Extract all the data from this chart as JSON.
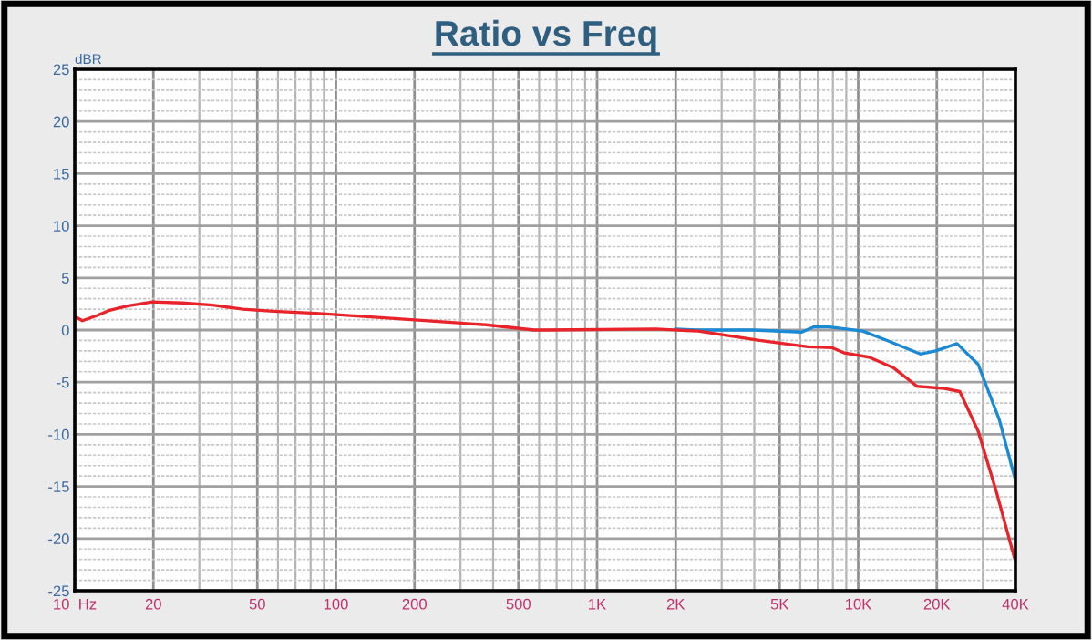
{
  "chart_data": {
    "type": "line",
    "title": "Ratio vs Freq",
    "ylabel": "dBR",
    "log": "x",
    "grid": true,
    "marker": "none",
    "line_style": "solid",
    "xlim": [
      10,
      40000
    ],
    "ylim": [
      -25,
      25
    ],
    "xticks": [
      {
        "value": 10,
        "label": "10  Hz"
      },
      20,
      50,
      100,
      200,
      500,
      {
        "value": 1000,
        "label": "1K"
      },
      {
        "value": 2000,
        "label": "2K"
      },
      {
        "value": 5000,
        "label": "5K"
      },
      {
        "value": 10000,
        "label": "10K"
      },
      {
        "value": 20000,
        "label": "20K"
      },
      {
        "value": 40000,
        "label": "40K"
      }
    ],
    "yticks": [
      -25,
      -20,
      -15,
      -10,
      -5,
      0,
      5,
      10,
      15,
      20,
      25
    ],
    "series": [
      {
        "color": "#1a8ad4",
        "x": [
          2000,
          2440,
          3965,
          6080,
          6770,
          7740,
          10400,
          12900,
          17300,
          19800,
          23900,
          28800,
          34700,
          39700
        ],
        "values": [
          0.1,
          0,
          0,
          -0.2,
          0.3,
          0.3,
          -0.1,
          -1.0,
          -2.3,
          -2.0,
          -1.3,
          -3.3,
          -8.6,
          -14.1
        ]
      },
      {
        "color": "#e8232a",
        "x": [
          10,
          10.7,
          12.2,
          13.6,
          15.9,
          19.8,
          25.8,
          33.7,
          44,
          57.6,
          83.7,
          128,
          219,
          376,
          573,
          640,
          1680,
          2440,
          4190,
          6420,
          7960,
          8860,
          11000,
          13600,
          16800,
          21400,
          24500,
          28800,
          33800,
          39700
        ],
        "values": [
          1.3,
          0.9,
          1.4,
          1.9,
          2.3,
          2.7,
          2.6,
          2.4,
          2.0,
          1.8,
          1.6,
          1.3,
          0.9,
          0.5,
          0,
          0,
          0.1,
          -0.1,
          -1.0,
          -1.6,
          -1.7,
          -2.2,
          -2.6,
          -3.6,
          -5.4,
          -5.6,
          -5.9,
          -9.7,
          -15.5,
          -21.9
        ]
      }
    ]
  }
}
